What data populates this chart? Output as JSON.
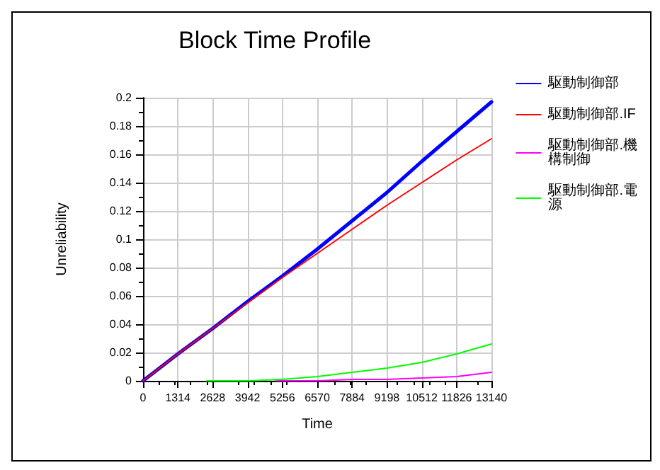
{
  "chart_data": {
    "type": "line",
    "title": "Block Time Profile",
    "xlabel": "Time",
    "ylabel": "Unreliability",
    "x": [
      0,
      1314,
      2628,
      3942,
      5256,
      6570,
      7884,
      9198,
      10512,
      11826,
      13140
    ],
    "series": [
      {
        "name": "駆動制御部",
        "color": "#0000ff",
        "values": [
          0,
          0.019,
          0.037,
          0.056,
          0.074,
          0.093,
          0.113,
          0.133,
          0.155,
          0.176,
          0.197
        ]
      },
      {
        "name": "駆動制御部.IF",
        "color": "#ff0000",
        "values": [
          0,
          0.019,
          0.037,
          0.055,
          0.073,
          0.09,
          0.107,
          0.124,
          0.14,
          0.156,
          0.171
        ]
      },
      {
        "name": "駆動制御部.機構制御",
        "color": "#ff00ff",
        "x": [
          5000,
          6570,
          7884,
          9198,
          10512,
          11826,
          13140
        ],
        "values": [
          0,
          0,
          0.001,
          0.001,
          0.002,
          0.003,
          0.006
        ]
      },
      {
        "name": "駆動制御部.電源",
        "color": "#00ff00",
        "x": [
          2400,
          3942,
          5256,
          6570,
          7884,
          9198,
          10512,
          11826,
          13140
        ],
        "values": [
          0,
          0,
          0.001,
          0.003,
          0.006,
          0.009,
          0.013,
          0.019,
          0.026
        ]
      }
    ],
    "xlim": [
      0,
      13140
    ],
    "xticks": [
      0,
      1314,
      2628,
      3942,
      5256,
      6570,
      7884,
      9198,
      10512,
      11826,
      13140
    ],
    "ylim": [
      0,
      0.2
    ],
    "yticks": [
      0,
      0.02,
      0.04,
      0.06,
      0.08,
      0.1,
      0.12,
      0.14,
      0.16,
      0.18,
      0.2
    ],
    "grid": true,
    "legend": "right",
    "marker": "none",
    "line_style": "solid"
  }
}
